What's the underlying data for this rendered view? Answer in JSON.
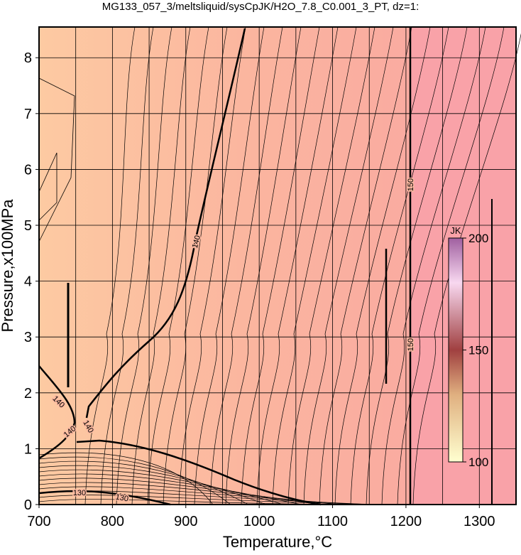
{
  "chart_data": {
    "type": "contour",
    "title": "MG133_057_3/meltsliquid/sysCpJK/H2O_7.8_C0.001_3_PT, dz=1:",
    "x_label": "Temperature,°C",
    "y_label": "Pressure,x100MPa",
    "xlim": [
      700,
      1350
    ],
    "ylim": [
      0,
      8.55
    ],
    "xticks": [
      700,
      800,
      900,
      1000,
      1100,
      1200,
      1300
    ],
    "xgrid": [
      750,
      850,
      950,
      1050,
      1150,
      1250
    ],
    "yticks": [
      0,
      1,
      2,
      3,
      4,
      5,
      6,
      7,
      8
    ],
    "grid": true,
    "contour_labels": [
      140,
      140,
      140,
      140,
      130,
      130,
      150,
      150
    ],
    "colorbar": {
      "label": "JK",
      "lim": [
        100,
        200
      ],
      "ticks": [
        100,
        150,
        200
      ]
    }
  }
}
